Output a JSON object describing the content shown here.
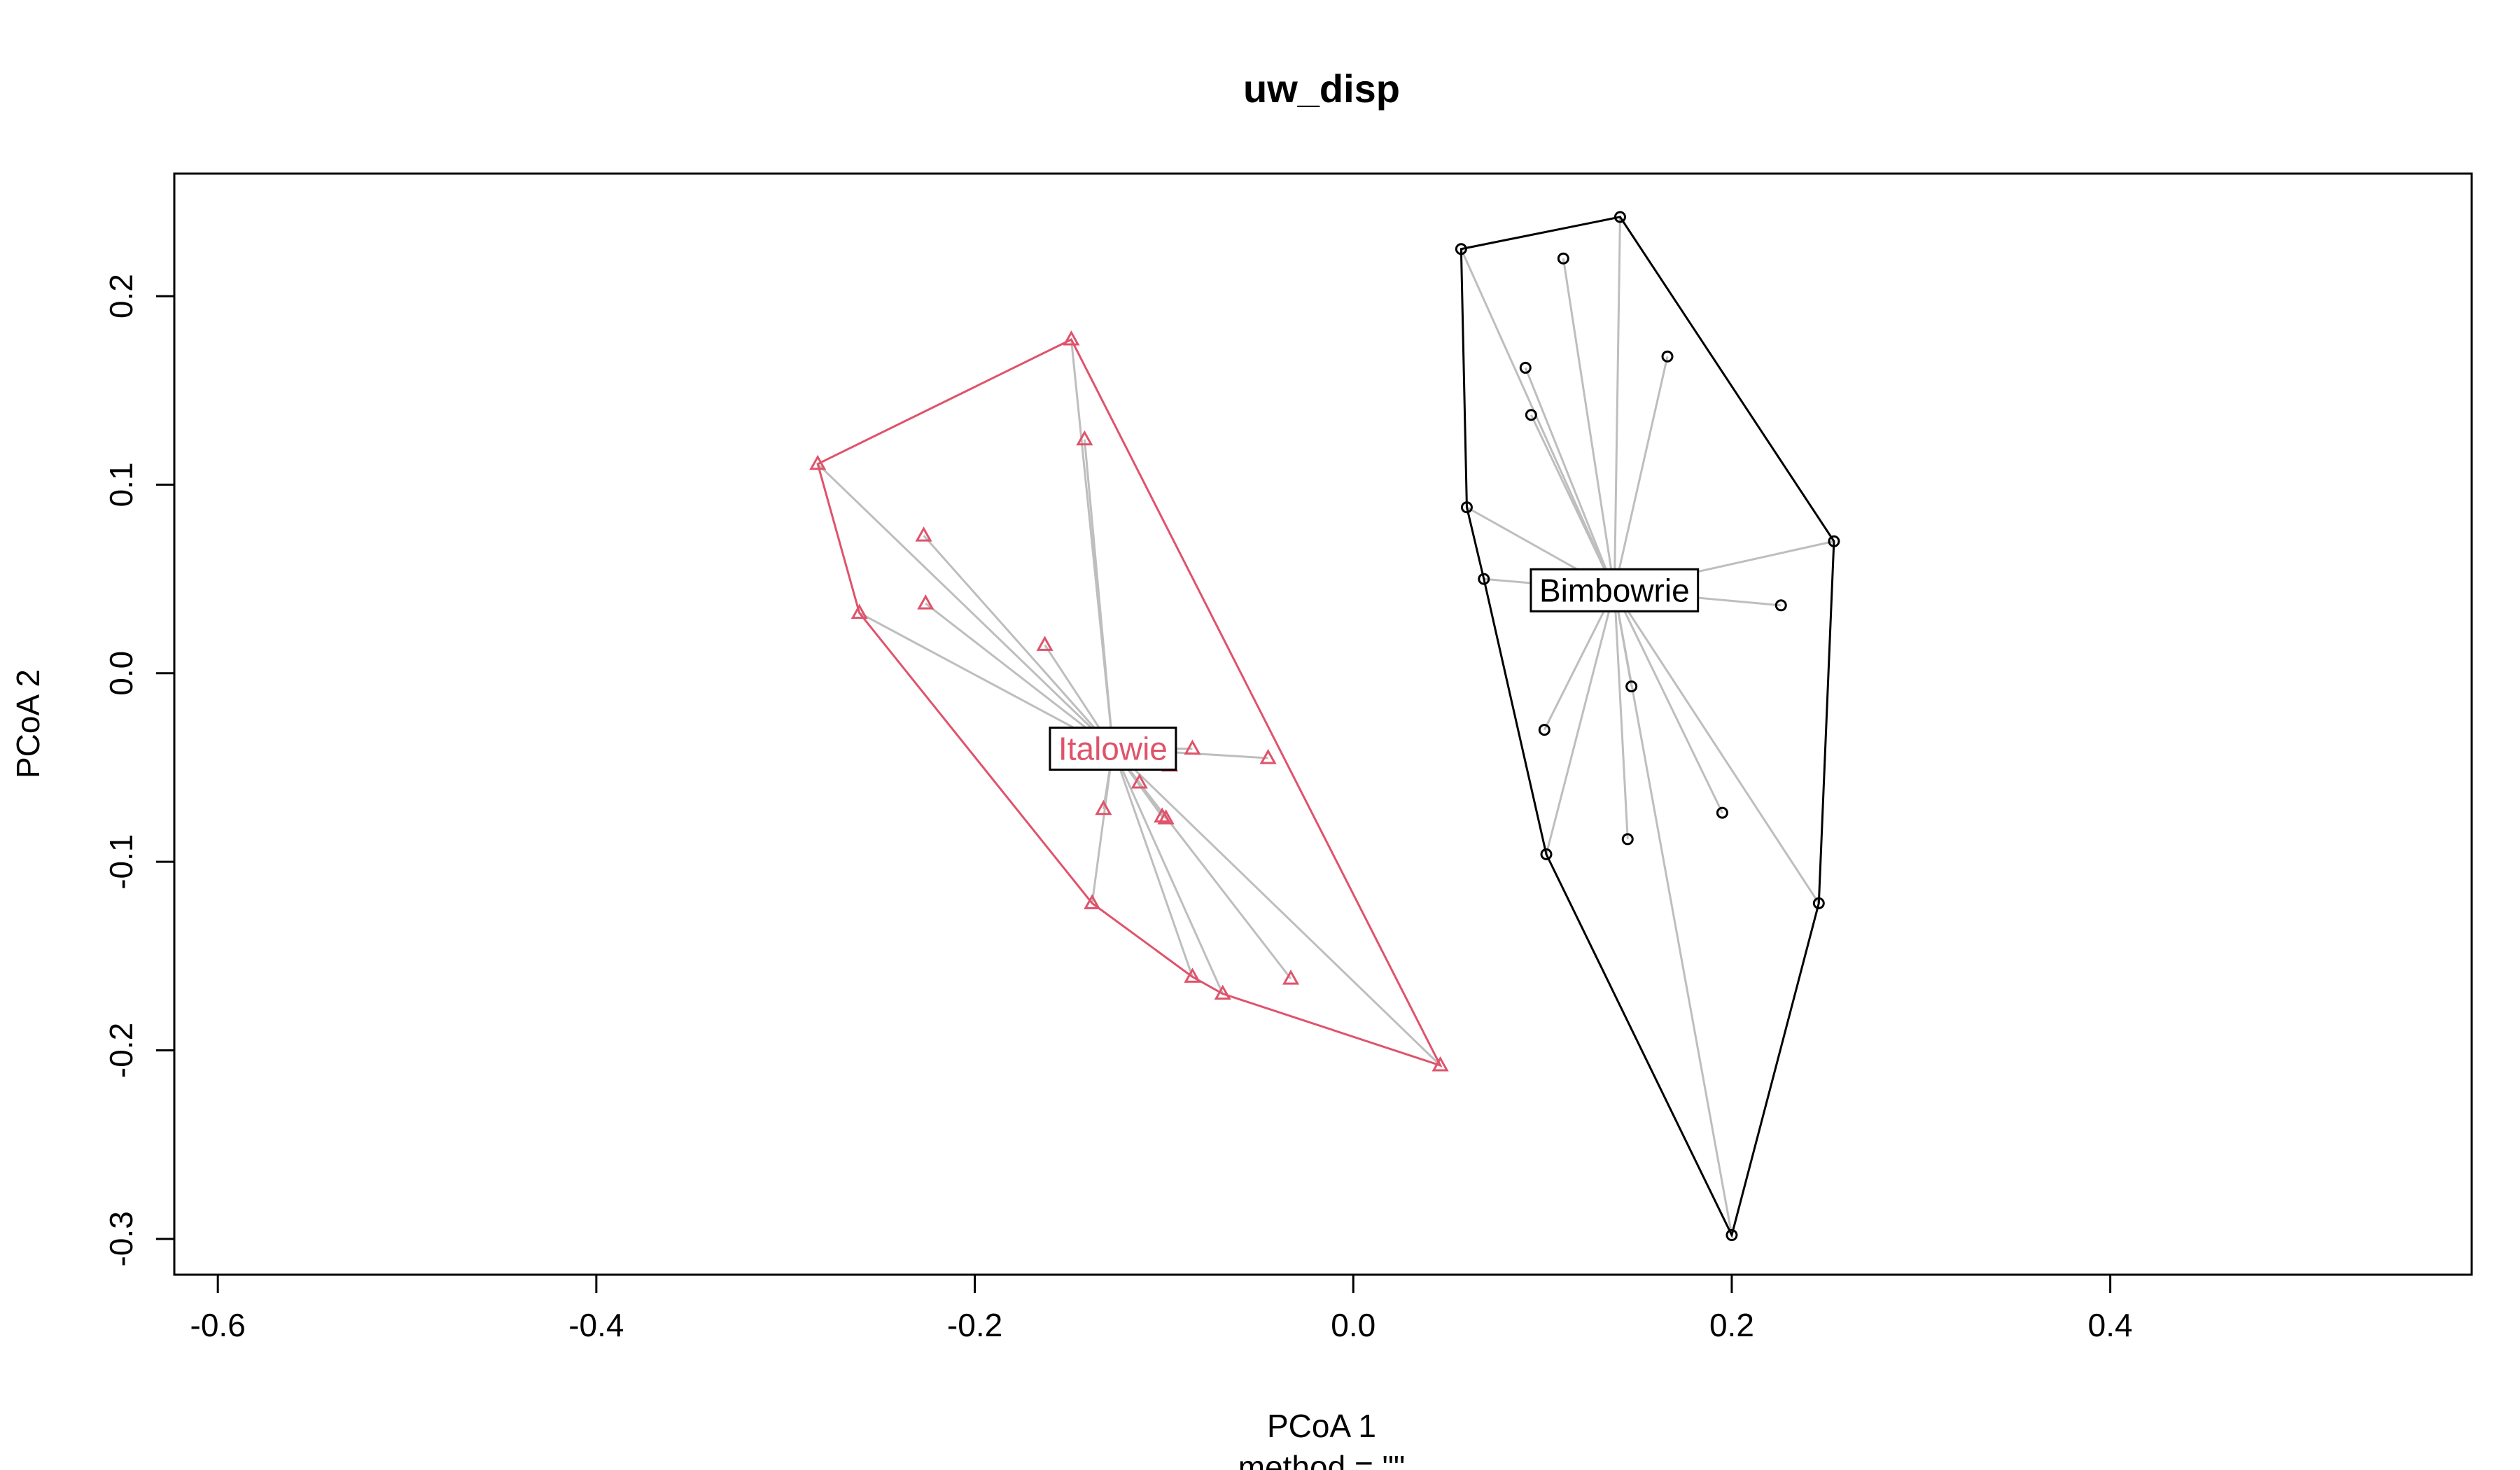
{
  "chart_data": {
    "type": "scatter",
    "title": "uw_disp",
    "xlabel": "PCoA 1",
    "ylabel": "PCoA 2",
    "sublabel": "method = \"\"",
    "xlim": [
      -0.623,
      0.591
    ],
    "ylim": [
      -0.319,
      0.265
    ],
    "xticks": [
      -0.6,
      -0.4,
      -0.2,
      0.0,
      0.2,
      0.4
    ],
    "xtick_labels": [
      "-0.6",
      "-0.4",
      "-0.2",
      "0.0",
      "0.2",
      "0.4"
    ],
    "yticks": [
      -0.3,
      -0.2,
      -0.1,
      0.0,
      0.1,
      0.2
    ],
    "ytick_labels": [
      "-0.3",
      "-0.2",
      "-0.1",
      "0.0",
      "0.1",
      "0.2"
    ],
    "grid": false,
    "colors": {
      "axis": "#000000",
      "spoke": "#bebebe"
    },
    "groups": [
      {
        "name": "Bimbowrie",
        "color": "#000000",
        "marker": "circle",
        "centroid": [
          0.138,
          0.044
        ],
        "points": [
          [
            0.057,
            0.225
          ],
          [
            0.141,
            0.242
          ],
          [
            0.111,
            0.22
          ],
          [
            0.166,
            0.168
          ],
          [
            0.091,
            0.162
          ],
          [
            0.094,
            0.137
          ],
          [
            0.06,
            0.088
          ],
          [
            0.254,
            0.07
          ],
          [
            0.069,
            0.05
          ],
          [
            0.226,
            0.036
          ],
          [
            0.147,
            -0.007
          ],
          [
            0.101,
            -0.03
          ],
          [
            0.195,
            -0.074
          ],
          [
            0.145,
            -0.088
          ],
          [
            0.102,
            -0.096
          ],
          [
            0.246,
            -0.122
          ],
          [
            0.2,
            -0.298
          ]
        ],
        "hull": [
          [
            0.057,
            0.225
          ],
          [
            0.141,
            0.242
          ],
          [
            0.254,
            0.07
          ],
          [
            0.246,
            -0.122
          ],
          [
            0.2,
            -0.298
          ],
          [
            0.102,
            -0.096
          ],
          [
            0.069,
            0.05
          ],
          [
            0.06,
            0.088
          ]
        ]
      },
      {
        "name": "Italowie",
        "color": "#df536b",
        "marker": "triangle",
        "centroid": [
          -0.127,
          -0.04
        ],
        "points": [
          [
            -0.149,
            0.177
          ],
          [
            -0.142,
            0.124
          ],
          [
            -0.283,
            0.111
          ],
          [
            -0.227,
            0.073
          ],
          [
            -0.226,
            0.037
          ],
          [
            -0.261,
            0.032
          ],
          [
            -0.163,
            0.015
          ],
          [
            -0.085,
            -0.04
          ],
          [
            -0.045,
            -0.045
          ],
          [
            -0.097,
            -0.049
          ],
          [
            -0.113,
            -0.058
          ],
          [
            -0.132,
            -0.072
          ],
          [
            -0.101,
            -0.076
          ],
          [
            -0.099,
            -0.077
          ],
          [
            -0.138,
            -0.122
          ],
          [
            -0.085,
            -0.161
          ],
          [
            -0.069,
            -0.17
          ],
          [
            -0.033,
            -0.162
          ],
          [
            0.046,
            -0.208
          ]
        ],
        "hull": [
          [
            -0.283,
            0.111
          ],
          [
            -0.149,
            0.177
          ],
          [
            0.046,
            -0.208
          ],
          [
            -0.069,
            -0.17
          ],
          [
            -0.085,
            -0.161
          ],
          [
            -0.138,
            -0.122
          ],
          [
            -0.261,
            0.032
          ]
        ]
      }
    ]
  }
}
